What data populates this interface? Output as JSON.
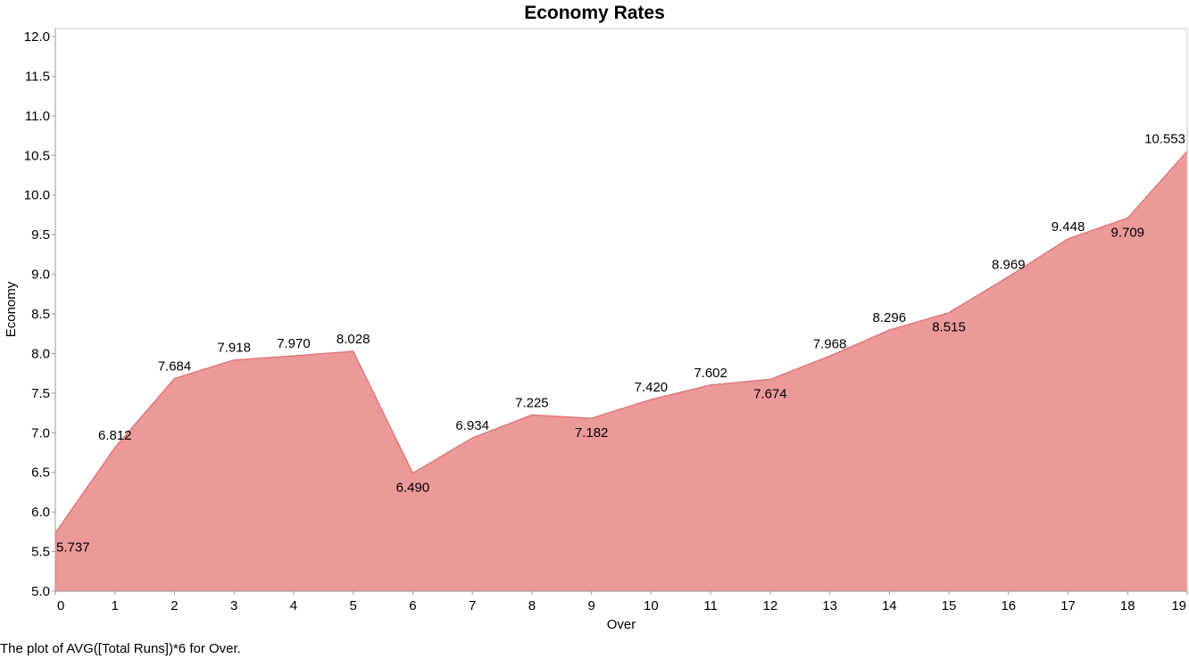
{
  "chart_data": {
    "type": "area",
    "title": "Economy Rates",
    "xlabel": "Over",
    "ylabel": "Economy",
    "caption": "The plot of AVG([Total Runs])*6 for Over.",
    "x": [
      0,
      1,
      2,
      3,
      4,
      5,
      6,
      7,
      8,
      9,
      10,
      11,
      12,
      13,
      14,
      15,
      16,
      17,
      18,
      19
    ],
    "series": [
      {
        "values": [
          5.737,
          6.812,
          7.684,
          7.918,
          7.97,
          8.028,
          6.49,
          6.934,
          7.225,
          7.182,
          7.42,
          7.602,
          7.674,
          7.968,
          8.296,
          8.515,
          8.969,
          9.448,
          9.709,
          10.553
        ],
        "value_labels": [
          "5.737",
          "6.812",
          "7.684",
          "7.918",
          "7.970",
          "8.028",
          "6.490",
          "6.934",
          "7.225",
          "7.182",
          "7.420",
          "7.602",
          "7.674",
          "7.968",
          "8.296",
          "8.515",
          "8.969",
          "9.448",
          "9.709",
          "10.553"
        ]
      }
    ],
    "ylim": [
      5.0,
      12.0
    ],
    "xlim": [
      0,
      19
    ],
    "yticks": [
      "5.0",
      "5.5",
      "6.0",
      "6.5",
      "7.0",
      "7.5",
      "8.0",
      "8.5",
      "9.0",
      "9.5",
      "10.0",
      "10.5",
      "11.0",
      "11.5",
      "12.0"
    ],
    "xticks": [
      "0",
      "1",
      "2",
      "3",
      "4",
      "5",
      "6",
      "7",
      "8",
      "9",
      "10",
      "11",
      "12",
      "13",
      "14",
      "15",
      "16",
      "17",
      "18",
      "19"
    ],
    "grid": false,
    "colors": {
      "fill": "#eb9999",
      "line": "#e07a7a",
      "axis": "#9a9a9a",
      "frame": "#c8c8c8"
    }
  }
}
